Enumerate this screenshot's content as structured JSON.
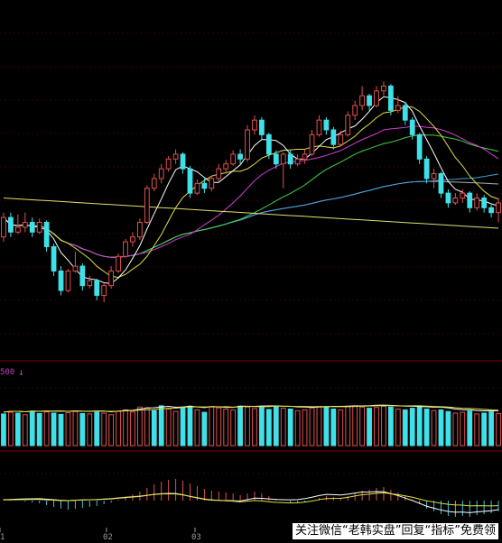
{
  "chart_data": {
    "type": "candlestick",
    "x_ticks": [
      "1",
      "02",
      "03"
    ],
    "volume_label": "500",
    "volume_arrow": "↓",
    "colors": {
      "background": "#000000",
      "up_candle": "#e05050",
      "down_candle": "#40e0e8",
      "ma5": "#ffffff",
      "ma10": "#e0e040",
      "ma20": "#d040d0",
      "ma30": "#40d040",
      "ma60": "#40a0e0",
      "ma120": "#b0b0b0",
      "ma250": "#e0e070",
      "macd_bar_up": "#e05050",
      "macd_bar_down": "#40c0e0"
    },
    "candles": [
      [
        19.5,
        21.5,
        19.0,
        22.0
      ],
      [
        21.5,
        20.0,
        19.5,
        22.0
      ],
      [
        20.0,
        20.5,
        19.8,
        21.8
      ],
      [
        20.5,
        21.0,
        20.0,
        22.0
      ],
      [
        21.0,
        20.0,
        19.5,
        21.5
      ],
      [
        20.0,
        21.0,
        19.8,
        21.4
      ],
      [
        21.0,
        18.5,
        18.0,
        21.2
      ],
      [
        18.5,
        16.0,
        15.5,
        18.8
      ],
      [
        16.0,
        14.0,
        13.5,
        16.5
      ],
      [
        14.0,
        16.0,
        13.8,
        16.2
      ],
      [
        16.0,
        16.5,
        15.8,
        18.0
      ],
      [
        16.5,
        14.5,
        14.0,
        16.8
      ],
      [
        14.5,
        15.0,
        14.2,
        15.5
      ],
      [
        15.0,
        13.5,
        13.0,
        15.2
      ],
      [
        13.5,
        14.5,
        12.8,
        14.8
      ],
      [
        14.5,
        16.0,
        14.2,
        16.5
      ],
      [
        16.0,
        17.5,
        15.8,
        17.8
      ],
      [
        17.5,
        19.0,
        17.3,
        19.3
      ],
      [
        19.0,
        19.5,
        18.5,
        20.0
      ],
      [
        19.5,
        21.0,
        19.2,
        21.4
      ],
      [
        21.0,
        24.5,
        20.8,
        24.8
      ],
      [
        24.5,
        25.5,
        24.2,
        26.0
      ],
      [
        25.5,
        26.5,
        25.0,
        27.0
      ],
      [
        26.5,
        27.5,
        26.2,
        27.8
      ],
      [
        27.5,
        28.0,
        27.0,
        28.5
      ],
      [
        28.0,
        26.5,
        26.0,
        28.2
      ],
      [
        26.5,
        24.0,
        23.5,
        26.8
      ],
      [
        24.0,
        25.0,
        23.8,
        25.4
      ],
      [
        25.0,
        24.5,
        24.0,
        25.5
      ],
      [
        24.5,
        25.5,
        24.2,
        25.8
      ],
      [
        25.5,
        26.5,
        25.2,
        27.0
      ],
      [
        26.5,
        27.0,
        26.0,
        27.4
      ],
      [
        27.0,
        28.0,
        26.8,
        28.4
      ],
      [
        28.0,
        27.5,
        27.0,
        28.5
      ],
      [
        27.5,
        30.5,
        27.2,
        31.0
      ],
      [
        30.5,
        31.5,
        30.0,
        32.0
      ],
      [
        31.5,
        30.0,
        29.5,
        31.8
      ],
      [
        30.0,
        28.0,
        27.5,
        30.2
      ],
      [
        28.0,
        27.0,
        26.5,
        28.4
      ],
      [
        27.0,
        28.0,
        24.5,
        28.2
      ],
      [
        28.0,
        27.0,
        26.5,
        28.4
      ],
      [
        27.0,
        27.5,
        26.8,
        28.0
      ],
      [
        27.5,
        28.0,
        27.0,
        28.5
      ],
      [
        28.0,
        30.0,
        27.8,
        30.5
      ],
      [
        30.0,
        31.5,
        29.8,
        32.0
      ],
      [
        31.5,
        30.5,
        30.0,
        31.8
      ],
      [
        30.5,
        29.0,
        28.5,
        30.8
      ],
      [
        29.0,
        30.0,
        28.8,
        30.4
      ],
      [
        30.0,
        32.0,
        29.8,
        32.4
      ],
      [
        32.0,
        33.0,
        31.5,
        33.5
      ],
      [
        33.0,
        34.0,
        32.5,
        35.0
      ],
      [
        34.0,
        33.0,
        32.5,
        34.2
      ],
      [
        33.0,
        34.5,
        32.8,
        35.0
      ],
      [
        34.5,
        35.0,
        34.0,
        35.5
      ],
      [
        35.0,
        32.5,
        32.0,
        35.2
      ],
      [
        32.5,
        33.0,
        32.2,
        34.0
      ],
      [
        33.0,
        31.5,
        31.0,
        33.4
      ],
      [
        31.5,
        30.0,
        29.5,
        31.8
      ],
      [
        30.0,
        27.5,
        27.0,
        30.2
      ],
      [
        27.5,
        25.5,
        25.0,
        27.8
      ],
      [
        25.5,
        26.0,
        24.5,
        26.5
      ],
      [
        26.0,
        24.0,
        23.5,
        26.2
      ],
      [
        24.0,
        23.0,
        22.5,
        24.4
      ],
      [
        23.0,
        23.5,
        22.8,
        24.0
      ],
      [
        23.5,
        24.0,
        23.0,
        24.4
      ],
      [
        24.0,
        22.5,
        22.0,
        24.2
      ],
      [
        22.5,
        23.5,
        22.2,
        24.0
      ],
      [
        23.5,
        22.5,
        22.0,
        23.8
      ],
      [
        22.5,
        22.0,
        21.5,
        22.8
      ],
      [
        22.0,
        23.0,
        21.0,
        23.5
      ]
    ],
    "volume": [
      [
        0.78,
        "dn"
      ],
      [
        0.82,
        "up"
      ],
      [
        0.8,
        "dn"
      ],
      [
        0.76,
        "up"
      ],
      [
        0.85,
        "dn"
      ],
      [
        0.79,
        "dn"
      ],
      [
        0.83,
        "up"
      ],
      [
        0.8,
        "dn"
      ],
      [
        0.77,
        "dn"
      ],
      [
        0.81,
        "up"
      ],
      [
        0.84,
        "up"
      ],
      [
        0.79,
        "dn"
      ],
      [
        0.78,
        "up"
      ],
      [
        0.82,
        "dn"
      ],
      [
        0.8,
        "up"
      ],
      [
        0.76,
        "up"
      ],
      [
        0.85,
        "up"
      ],
      [
        0.88,
        "up"
      ],
      [
        0.83,
        "up"
      ],
      [
        0.95,
        "up"
      ],
      [
        0.92,
        "up"
      ],
      [
        0.86,
        "dn"
      ],
      [
        0.98,
        "dn"
      ],
      [
        0.9,
        "up"
      ],
      [
        0.84,
        "up"
      ],
      [
        0.95,
        "dn"
      ],
      [
        0.97,
        "dn"
      ],
      [
        0.88,
        "up"
      ],
      [
        0.82,
        "dn"
      ],
      [
        0.96,
        "up"
      ],
      [
        0.93,
        "up"
      ],
      [
        0.9,
        "up"
      ],
      [
        0.88,
        "up"
      ],
      [
        0.97,
        "dn"
      ],
      [
        0.95,
        "up"
      ],
      [
        0.91,
        "up"
      ],
      [
        0.94,
        "dn"
      ],
      [
        0.89,
        "dn"
      ],
      [
        0.97,
        "dn"
      ],
      [
        0.92,
        "up"
      ],
      [
        0.9,
        "dn"
      ],
      [
        0.86,
        "up"
      ],
      [
        0.88,
        "up"
      ],
      [
        0.93,
        "up"
      ],
      [
        0.96,
        "up"
      ],
      [
        0.94,
        "dn"
      ],
      [
        0.9,
        "dn"
      ],
      [
        0.88,
        "up"
      ],
      [
        0.96,
        "up"
      ],
      [
        0.98,
        "up"
      ],
      [
        0.95,
        "up"
      ],
      [
        0.92,
        "dn"
      ],
      [
        0.94,
        "up"
      ],
      [
        0.97,
        "up"
      ],
      [
        0.95,
        "dn"
      ],
      [
        0.9,
        "up"
      ],
      [
        0.88,
        "dn"
      ],
      [
        0.92,
        "dn"
      ],
      [
        0.95,
        "dn"
      ],
      [
        0.9,
        "dn"
      ],
      [
        0.86,
        "up"
      ],
      [
        0.88,
        "dn"
      ],
      [
        0.84,
        "dn"
      ],
      [
        0.8,
        "up"
      ],
      [
        0.82,
        "up"
      ],
      [
        0.85,
        "dn"
      ],
      [
        0.78,
        "up"
      ],
      [
        0.8,
        "dn"
      ],
      [
        0.83,
        "dn"
      ],
      [
        0.79,
        "up"
      ]
    ],
    "macd": [
      0.2,
      0.1,
      0.0,
      -0.1,
      -0.2,
      -0.3,
      -0.5,
      -0.7,
      -0.9,
      -1.0,
      -0.9,
      -0.8,
      -0.7,
      -0.6,
      -0.4,
      -0.2,
      0.1,
      0.4,
      0.7,
      1.0,
      1.4,
      1.8,
      2.1,
      2.3,
      2.4,
      2.2,
      1.9,
      1.6,
      1.3,
      1.1,
      1.0,
      0.9,
      0.8,
      0.6,
      0.8,
      1.0,
      0.8,
      0.5,
      0.2,
      0.0,
      -0.2,
      -0.3,
      -0.2,
      0.0,
      0.3,
      0.5,
      0.4,
      0.3,
      0.5,
      0.8,
      1.1,
      1.2,
      1.4,
      1.5,
      1.2,
      0.9,
      0.5,
      0.1,
      -0.4,
      -0.9,
      -1.2,
      -1.5,
      -1.7,
      -1.8,
      -1.7,
      -1.8,
      -1.6,
      -1.5,
      -1.4,
      -1.2
    ]
  },
  "watermark": "关注微信“老韩实盘”回复“指标”免费领"
}
